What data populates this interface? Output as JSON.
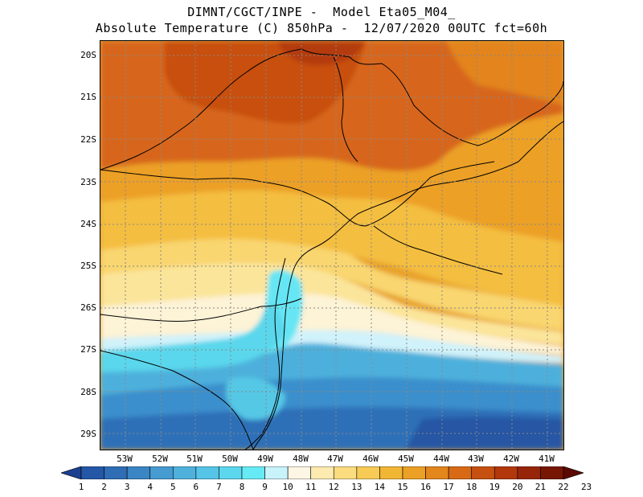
{
  "title_line1": "DIMNT/CGCT/INPE -  Model Eta05_M04_",
  "title_line2": "Absolute Temperature (C) 850hPa -  12/07/2020 00UTC fct=60h",
  "lat_labels": [
    "20S",
    "21S",
    "22S",
    "23S",
    "24S",
    "25S",
    "26S",
    "27S",
    "28S",
    "29S"
  ],
  "lon_labels": [
    "53W",
    "52W",
    "51W",
    "50W",
    "49W",
    "48W",
    "47W",
    "46W",
    "45W",
    "44W",
    "43W",
    "42W",
    "41W"
  ],
  "colorbar": {
    "labels": [
      "1",
      "2",
      "3",
      "4",
      "5",
      "6",
      "7",
      "8",
      "9",
      "10",
      "11",
      "12",
      "13",
      "14",
      "15",
      "16",
      "17",
      "18",
      "19",
      "20",
      "21",
      "22",
      "23"
    ],
    "colors": [
      "#1c3f8f",
      "#2457a6",
      "#2f6db4",
      "#3a85c4",
      "#469bd0",
      "#4fb0dc",
      "#55c4e6",
      "#5cd7ee",
      "#66ebf6",
      "#c9f3fb",
      "#fdf6e4",
      "#fdeab0",
      "#fbdd80",
      "#f7cb55",
      "#f2b635",
      "#eca025",
      "#e3861c",
      "#d86a15",
      "#c6500f",
      "#b2380c",
      "#962509",
      "#781605",
      "#5a0a02"
    ]
  }
}
